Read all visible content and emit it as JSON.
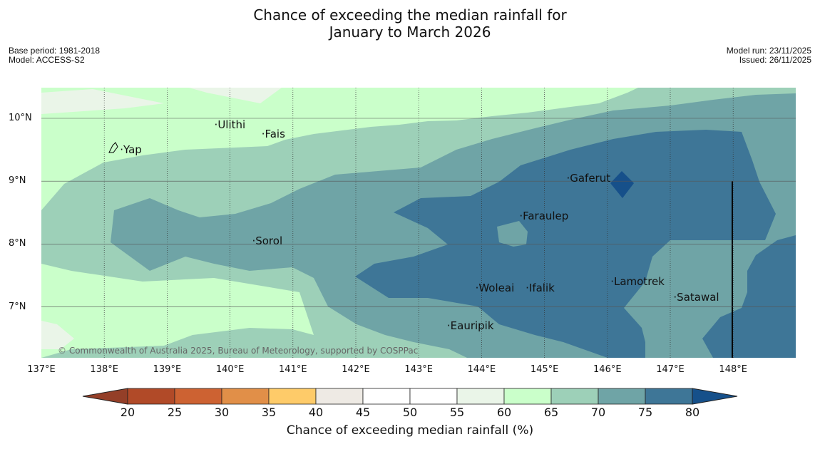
{
  "title_line1": "Chance of exceeding the median rainfall for",
  "title_line2": "January to March 2026",
  "meta_left": {
    "base_period": "Base period: 1981-2018",
    "model": "Model: ACCESS-S2"
  },
  "meta_right": {
    "model_run": "Model run: 23/11/2025",
    "issued": "Issued: 26/11/2025"
  },
  "axes": {
    "x_ticks": [
      "137°E",
      "138°E",
      "139°E",
      "140°E",
      "141°E",
      "142°E",
      "143°E",
      "144°E",
      "145°E",
      "146°E",
      "147°E",
      "148°E"
    ],
    "y_ticks": [
      "10°N",
      "9°N",
      "8°N",
      "7°N"
    ]
  },
  "places": [
    {
      "name": "Yap",
      "lon": 138.25,
      "lat": 9.5
    },
    {
      "name": "Ulithi",
      "lon": 139.75,
      "lat": 9.9
    },
    {
      "name": "Fais",
      "lon": 140.5,
      "lat": 9.75
    },
    {
      "name": "Gaferut",
      "lon": 145.35,
      "lat": 9.05
    },
    {
      "name": "Faraulep",
      "lon": 144.6,
      "lat": 8.45
    },
    {
      "name": "Sorol",
      "lon": 140.35,
      "lat": 8.05
    },
    {
      "name": "Lamotrek",
      "lon": 146.05,
      "lat": 7.4
    },
    {
      "name": "Woleai",
      "lon": 143.9,
      "lat": 7.3
    },
    {
      "name": "Ifalik",
      "lon": 144.7,
      "lat": 7.3
    },
    {
      "name": "Satawal",
      "lon": 147.05,
      "lat": 7.15
    },
    {
      "name": "Eauripik",
      "lon": 143.45,
      "lat": 6.7
    }
  ],
  "credit": "© Commonwealth of Australia 2025, Bureau of Meteorology, supported by COSPPac",
  "colorbar": {
    "title": "Chance of exceeding median rainfall (%)",
    "labels": [
      "20",
      "25",
      "30",
      "35",
      "40",
      "45",
      "50",
      "55",
      "60",
      "65",
      "70",
      "75",
      "80"
    ],
    "colors": [
      "#b14a28",
      "#cd6232",
      "#e18f48",
      "#fecb69",
      "#eeeae4",
      "#ffffff",
      "#ffffff",
      "#eaf5e8",
      "#caffca",
      "#9dd0b8",
      "#6fa4a6",
      "#3e7697"
    ],
    "under_color": "#943f28",
    "over_color": "#16508a"
  },
  "colors": {
    "c60_65": "#caffca",
    "c65_70": "#9dd0b8",
    "c70_75": "#6fa4a6",
    "c75_80": "#3e7697",
    "c80plus": "#16508a",
    "c55_60": "#eaf5e8"
  }
}
